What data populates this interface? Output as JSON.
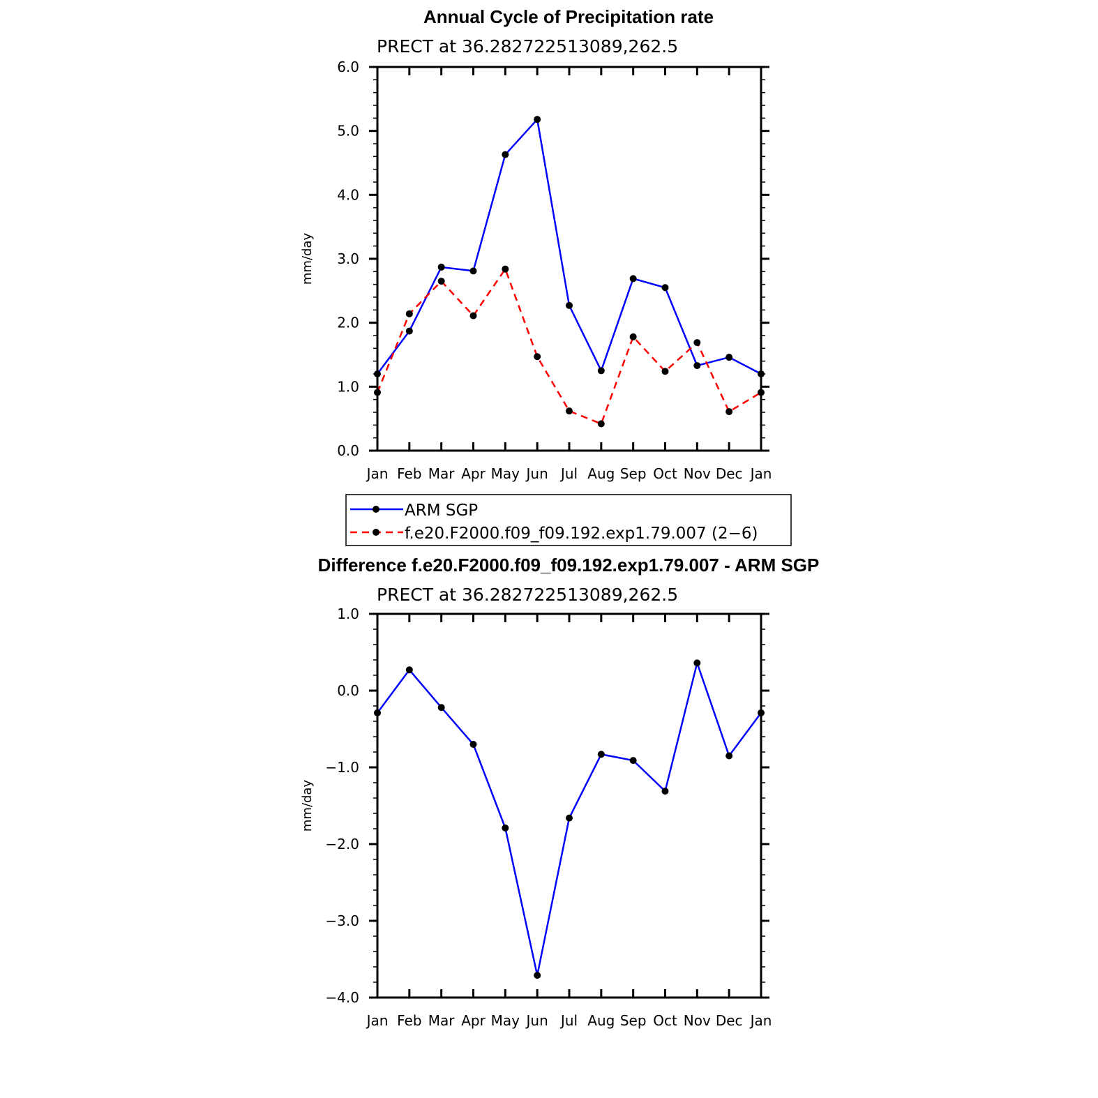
{
  "chart_data": [
    {
      "type": "line",
      "title": "Annual Cycle of Precipitation rate",
      "subtitle": "PRECT at 36.282722513089,262.5",
      "xlabel": "",
      "ylabel": "mm/day",
      "categories": [
        "Jan",
        "Feb",
        "Mar",
        "Apr",
        "May",
        "Jun",
        "Jul",
        "Aug",
        "Sep",
        "Oct",
        "Nov",
        "Dec",
        "Jan"
      ],
      "ylim": [
        0,
        6
      ],
      "yticks": [
        "0.0",
        "1.0",
        "2.0",
        "3.0",
        "4.0",
        "5.0",
        "6.0"
      ],
      "series": [
        {
          "name": "ARM SGP",
          "color": "#0000ff",
          "dash": "solid",
          "values": [
            1.2,
            1.87,
            2.87,
            2.81,
            4.63,
            5.18,
            2.27,
            1.25,
            2.69,
            2.55,
            1.33,
            1.46,
            1.2
          ]
        },
        {
          "name": "f.e20.F2000.f09_f09.192.exp1.79.007 (2−6)",
          "color": "#ff0000",
          "dash": "dashed",
          "values": [
            0.91,
            2.14,
            2.65,
            2.11,
            2.84,
            1.47,
            0.62,
            0.42,
            1.78,
            1.24,
            1.69,
            0.61,
            0.91
          ]
        }
      ],
      "legend": "below"
    },
    {
      "type": "line",
      "title": "Difference f.e20.F2000.f09_f09.192.exp1.79.007 - ARM SGP",
      "subtitle": "PRECT at 36.282722513089,262.5",
      "xlabel": "",
      "ylabel": "mm/day",
      "categories": [
        "Jan",
        "Feb",
        "Mar",
        "Apr",
        "May",
        "Jun",
        "Jul",
        "Aug",
        "Sep",
        "Oct",
        "Nov",
        "Dec",
        "Jan"
      ],
      "ylim": [
        -4,
        1
      ],
      "yticks": [
        "−4.0",
        "−3.0",
        "−2.0",
        "−1.0",
        "0.0",
        "1.0"
      ],
      "series": [
        {
          "name": "Difference",
          "color": "#0000ff",
          "dash": "solid",
          "values": [
            -0.29,
            0.27,
            -0.22,
            -0.7,
            -1.79,
            -3.71,
            -1.66,
            -0.83,
            -0.91,
            -1.31,
            0.36,
            -0.85,
            -0.29
          ]
        }
      ]
    }
  ]
}
